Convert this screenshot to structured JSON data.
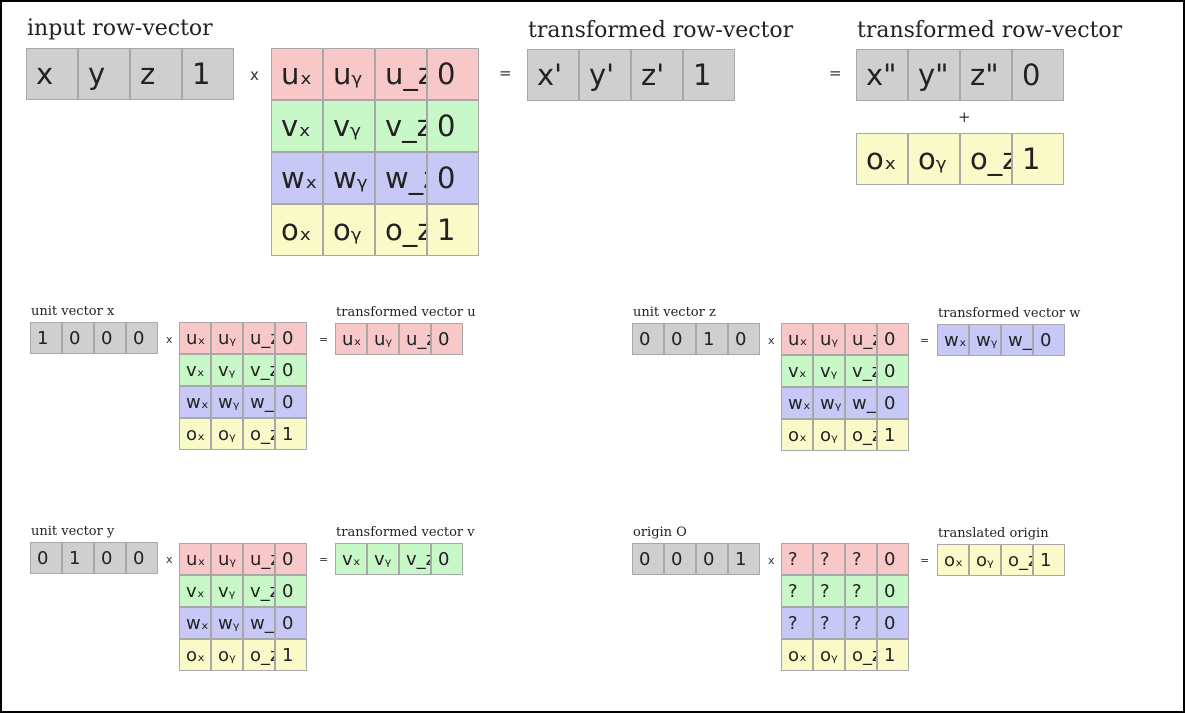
{
  "colors": {
    "gray": "#cfcfcf",
    "red": "#f8c8c8",
    "green": "#c8f7c8",
    "blue": "#c8c8f7",
    "yellow": "#fafac8"
  },
  "top": {
    "input_label": "input row-vector",
    "transformed_label_1": "transformed row-vector",
    "transformed_label_2": "transformed row-vector",
    "op_times": "x",
    "op_equals_1": "=",
    "op_equals_2": "=",
    "op_plus": "+",
    "input_vector": [
      "x",
      "y",
      "z",
      "1"
    ],
    "matrix": [
      [
        "uₓ",
        "uᵧ",
        "u_z",
        "0"
      ],
      [
        "vₓ",
        "vᵧ",
        "v_z",
        "0"
      ],
      [
        "wₓ",
        "wᵧ",
        "w_z",
        "0"
      ],
      [
        "oₓ",
        "oᵧ",
        "o_z",
        "1"
      ]
    ],
    "result_vector": [
      "x'",
      "y'",
      "z'",
      "1"
    ],
    "direction_vector": [
      "x\"",
      "y\"",
      "z\"",
      "0"
    ],
    "origin_vector": [
      "oₓ",
      "oᵧ",
      "o_z",
      "1"
    ]
  },
  "examples": [
    {
      "input_label": "unit vector x",
      "input": [
        "1",
        "0",
        "0",
        "0"
      ],
      "op_times": "x",
      "op_equals": "=",
      "matrix": [
        [
          "uₓ",
          "uᵧ",
          "u_z",
          "0"
        ],
        [
          "vₓ",
          "vᵧ",
          "v_z",
          "0"
        ],
        [
          "wₓ",
          "wᵧ",
          "w_z",
          "0"
        ],
        [
          "oₓ",
          "oᵧ",
          "o_z",
          "1"
        ]
      ],
      "output_label": "transformed vector u",
      "output": [
        "uₓ",
        "uᵧ",
        "u_z",
        "0"
      ]
    },
    {
      "input_label": "unit vector y",
      "input": [
        "0",
        "1",
        "0",
        "0"
      ],
      "op_times": "x",
      "op_equals": "=",
      "matrix": [
        [
          "uₓ",
          "uᵧ",
          "u_z",
          "0"
        ],
        [
          "vₓ",
          "vᵧ",
          "v_z",
          "0"
        ],
        [
          "wₓ",
          "wᵧ",
          "w_z",
          "0"
        ],
        [
          "oₓ",
          "oᵧ",
          "o_z",
          "1"
        ]
      ],
      "output_label": "transformed vector v",
      "output": [
        "vₓ",
        "vᵧ",
        "v_z",
        "0"
      ]
    },
    {
      "input_label": "unit vector z",
      "input": [
        "0",
        "0",
        "1",
        "0"
      ],
      "op_times": "x",
      "op_equals": "=",
      "matrix": [
        [
          "uₓ",
          "uᵧ",
          "u_z",
          "0"
        ],
        [
          "vₓ",
          "vᵧ",
          "v_z",
          "0"
        ],
        [
          "wₓ",
          "wᵧ",
          "w_z",
          "0"
        ],
        [
          "oₓ",
          "oᵧ",
          "o_z",
          "1"
        ]
      ],
      "output_label": "transformed vector w",
      "output": [
        "wₓ",
        "wᵧ",
        "w_z",
        "0"
      ]
    },
    {
      "input_label": "origin O",
      "input": [
        "0",
        "0",
        "0",
        "1"
      ],
      "op_times": "x",
      "op_equals": "=",
      "matrix": [
        [
          "?",
          "?",
          "?",
          "0"
        ],
        [
          "?",
          "?",
          "?",
          "0"
        ],
        [
          "?",
          "?",
          "?",
          "0"
        ],
        [
          "oₓ",
          "oᵧ",
          "o_z",
          "1"
        ]
      ],
      "output_label": "translated origin",
      "output": [
        "oₓ",
        "oᵧ",
        "o_z",
        "1"
      ]
    }
  ]
}
